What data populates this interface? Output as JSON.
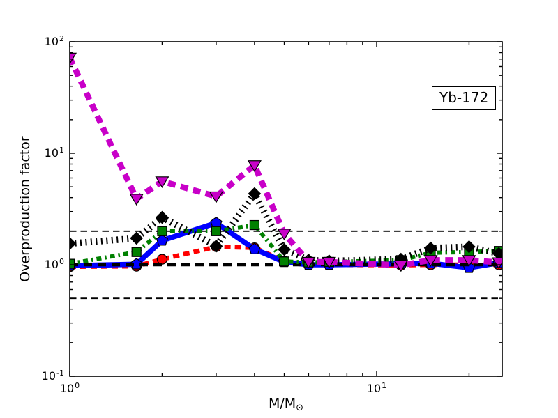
{
  "figure": {
    "background": "#ffffff"
  },
  "chart_data": {
    "type": "line",
    "title": "",
    "annotation": "Yb-172",
    "x_axis": {
      "label": "M/M",
      "label_subscript": "⊙",
      "scale": "log",
      "min": 1,
      "max": 25.6,
      "major_tick_values": [
        1,
        10
      ],
      "minor_tick_values": [
        2,
        3,
        4,
        5,
        6,
        7,
        8,
        9,
        20
      ],
      "ticks": [
        {
          "base": "10",
          "exp": "0",
          "value": 1
        },
        {
          "base": "10",
          "exp": "1",
          "value": 10
        }
      ]
    },
    "y_axis": {
      "label": "Overproduction factor",
      "scale": "log",
      "min": 0.1,
      "max": 100,
      "major_tick_values": [
        100,
        10,
        1,
        0.1
      ],
      "minor_tick_values": [
        0.2,
        0.3,
        0.4,
        0.5,
        0.6,
        0.7,
        0.8,
        0.9,
        2,
        3,
        4,
        5,
        6,
        7,
        8,
        9,
        20,
        30,
        40,
        50,
        60,
        70,
        80,
        90
      ],
      "ticks": [
        {
          "base": "10",
          "exp": "2",
          "value": 100
        },
        {
          "base": "10",
          "exp": "1",
          "value": 10
        },
        {
          "base": "10",
          "exp": "0",
          "value": 1
        },
        {
          "base": "10",
          "exp": "-1",
          "value": 0.1
        }
      ]
    },
    "reference_lines": [
      {
        "y": 2,
        "color": "#000000",
        "style": "dashed-thin"
      },
      {
        "y": 1,
        "color": "#000000",
        "style": "dashed-thick"
      },
      {
        "y": 0.5,
        "color": "#000000",
        "style": "dashed-thin"
      }
    ],
    "masses": [
      1,
      1.65,
      2,
      3,
      4,
      5,
      6,
      7,
      12,
      15,
      20,
      25
    ],
    "series": [
      {
        "name": "red-dashed",
        "color": "#ff0000",
        "linestyle": "dashed",
        "marker": "circle",
        "values": [
          0.96,
          0.97,
          1.12,
          1.45,
          1.42,
          1.08,
          1.0,
          1.0,
          0.99,
          1.0,
          1.0,
          1.0
        ]
      },
      {
        "name": "blue-solid",
        "color": "#0000ff",
        "linestyle": "solid",
        "marker": "pentagon",
        "values": [
          0.98,
          1.01,
          1.65,
          2.37,
          1.38,
          1.06,
          1.0,
          1.0,
          1.02,
          1.03,
          0.94,
          1.04
        ]
      },
      {
        "name": "green-dash-dot",
        "color": "#008000",
        "linestyle": "dash-dot",
        "marker": "square",
        "values": [
          1.02,
          1.3,
          2.0,
          2.0,
          2.27,
          1.07,
          1.05,
          1.06,
          1.1,
          1.28,
          1.3,
          1.33
        ]
      },
      {
        "name": "black-dotted",
        "color": "#000000",
        "linestyle": "dotted",
        "marker": "diamond",
        "values": [
          1.55,
          1.73,
          2.66,
          1.47,
          4.34,
          1.37,
          1.1,
          1.08,
          1.12,
          1.41,
          1.45,
          1.26
        ]
      },
      {
        "name": "magenta-dashed",
        "color": "#c800c8",
        "linestyle": "dashed-thick",
        "marker": "triangle-down",
        "values": [
          72,
          3.9,
          5.6,
          4.1,
          7.8,
          1.9,
          1.06,
          1.06,
          0.99,
          1.1,
          1.1,
          1.05
        ]
      }
    ]
  }
}
